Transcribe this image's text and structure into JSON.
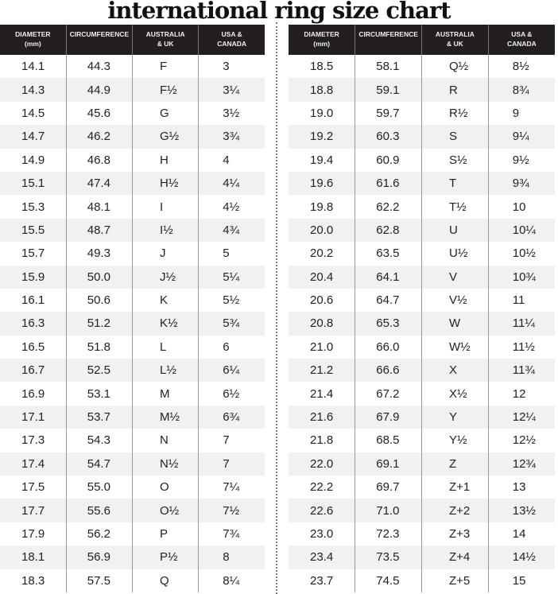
{
  "title": "international ring size chart",
  "headers": [
    "DIAMETER\n(mm)",
    "CIRCUMFERENCE",
    "AUSTRALIA\n& UK",
    "USA &\nCANADA"
  ],
  "left_rows": [
    [
      "14.1",
      "44.3",
      "F",
      "3"
    ],
    [
      "14.3",
      "44.9",
      "F½",
      "3¼"
    ],
    [
      "14.5",
      "45.6",
      "G",
      "3½"
    ],
    [
      "14.7",
      "46.2",
      "G½",
      "3¾"
    ],
    [
      "14.9",
      "46.8",
      "H",
      "4"
    ],
    [
      "15.1",
      "47.4",
      "H½",
      "4¼"
    ],
    [
      "15.3",
      "48.1",
      "I",
      "4½"
    ],
    [
      "15.5",
      "48.7",
      "I½",
      "4¾"
    ],
    [
      "15.7",
      "49.3",
      "J",
      "5"
    ],
    [
      "15.9",
      "50.0",
      "J½",
      "5¼"
    ],
    [
      "16.1",
      "50.6",
      "K",
      "5½"
    ],
    [
      "16.3",
      "51.2",
      "K½",
      "5¾"
    ],
    [
      "16.5",
      "51.8",
      "L",
      "6"
    ],
    [
      "16.7",
      "52.5",
      "L½",
      "6¼"
    ],
    [
      "16.9",
      "53.1",
      "M",
      "6½"
    ],
    [
      "17.1",
      "53.7",
      "M½",
      "6¾"
    ],
    [
      "17.3",
      "54.3",
      "N",
      "7"
    ],
    [
      "17.4",
      "54.7",
      "N½",
      "7"
    ],
    [
      "17.5",
      "55.0",
      "O",
      "7¼"
    ],
    [
      "17.7",
      "55.6",
      "O½",
      "7½"
    ],
    [
      "17.9",
      "56.2",
      "P",
      "7¾"
    ],
    [
      "18.1",
      "56.9",
      "P½",
      "8"
    ],
    [
      "18.3",
      "57.5",
      "Q",
      "8¼"
    ]
  ],
  "right_rows": [
    [
      "18.5",
      "58.1",
      "Q½",
      "8½"
    ],
    [
      "18.8",
      "59.1",
      "R",
      "8¾"
    ],
    [
      "19.0",
      "59.7",
      "R½",
      "9"
    ],
    [
      "19.2",
      "60.3",
      "S",
      "9¼"
    ],
    [
      "19.4",
      "60.9",
      "S½",
      "9½"
    ],
    [
      "19.6",
      "61.6",
      "T",
      "9¾"
    ],
    [
      "19.8",
      "62.2",
      "T½",
      "10"
    ],
    [
      "20.0",
      "62.8",
      "U",
      "10¼"
    ],
    [
      "20.2",
      "63.5",
      "U½",
      "10½"
    ],
    [
      "20.4",
      "64.1",
      "V",
      "10¾"
    ],
    [
      "20.6",
      "64.7",
      "V½",
      "11"
    ],
    [
      "20.8",
      "65.3",
      "W",
      "11¼"
    ],
    [
      "21.0",
      "66.0",
      "W½",
      "11½"
    ],
    [
      "21.2",
      "66.6",
      "X",
      "11¾"
    ],
    [
      "21.4",
      "67.2",
      "X½",
      "12"
    ],
    [
      "21.6",
      "67.9",
      "Y",
      "12¼"
    ],
    [
      "21.8",
      "68.5",
      "Y½",
      "12½"
    ],
    [
      "22.0",
      "69.1",
      "Z",
      "12¾"
    ],
    [
      "22.2",
      "69.7",
      "Z+1",
      "13"
    ],
    [
      "22.6",
      "71.0",
      "Z+2",
      "13½"
    ],
    [
      "23.0",
      "72.3",
      "Z+3",
      "14"
    ],
    [
      "23.4",
      "73.5",
      "Z+4",
      "14½"
    ],
    [
      "23.7",
      "74.5",
      "Z+5",
      "15"
    ]
  ],
  "colors": {
    "header_bg": "#231f20",
    "stripe": "#f1f1f1"
  }
}
